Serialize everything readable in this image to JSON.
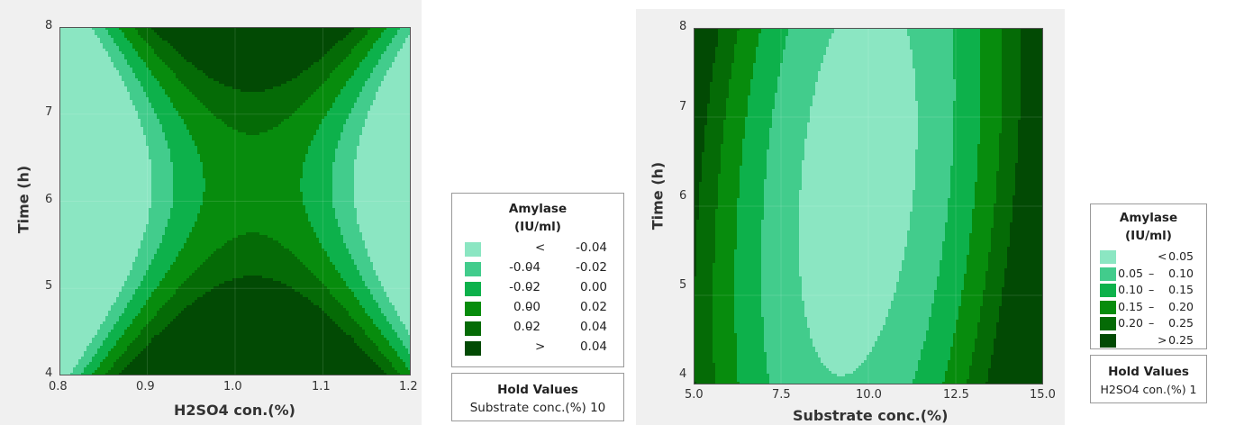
{
  "chart_data": [
    {
      "type": "contour",
      "xlabel": "H2SO4 con.(%)",
      "ylabel": "Time (h)",
      "xlim": [
        0.8,
        1.2
      ],
      "ylim": [
        4,
        8
      ],
      "x_ticks": [
        "0.8",
        "0.9",
        "1.0",
        "1.1",
        "1.2"
      ],
      "y_ticks": [
        "4",
        "5",
        "6",
        "7",
        "8"
      ],
      "legend": {
        "title": [
          "Amylase",
          "(IU/ml)"
        ],
        "bands": [
          {
            "lo": "",
            "sep": "<",
            "hi": "-0.04",
            "color": "#8be6c2"
          },
          {
            "lo": "-0.04",
            "sep": "–",
            "hi": "-0.02",
            "color": "#42cc8c"
          },
          {
            "lo": "-0.02",
            "sep": "–",
            "hi": "0.00",
            "color": "#0db14b"
          },
          {
            "lo": "0.00",
            "sep": "–",
            "hi": "0.02",
            "color": "#078c0d"
          },
          {
            "lo": "0.02",
            "sep": "–",
            "hi": "0.04",
            "color": "#056b06"
          },
          {
            "lo": "",
            "sep": ">",
            "hi": "0.04",
            "color": "#024a04"
          }
        ]
      },
      "hold": {
        "title": "Hold Values",
        "text": "Substrate conc.(%)  10"
      },
      "model": {
        "levels": [
          -0.04,
          -0.02,
          0.0,
          0.02,
          0.04
        ],
        "c": 0.012,
        "a": 0.44,
        "b": 0.025
      }
    },
    {
      "type": "contour",
      "xlabel": "Substrate conc.(%)",
      "ylabel": "Time (h)",
      "xlim": [
        5.0,
        15.0
      ],
      "ylim": [
        4,
        8
      ],
      "x_ticks": [
        "5.0",
        "7.5",
        "10.0",
        "12.5",
        "15.0"
      ],
      "y_ticks": [
        "4",
        "5",
        "6",
        "7",
        "8"
      ],
      "legend": {
        "title": [
          "Amylase",
          "(IU/ml)"
        ],
        "bands": [
          {
            "lo": "",
            "sep": "<",
            "hi": "0.05",
            "color": "#8be6c2"
          },
          {
            "lo": "0.05",
            "sep": "–",
            "hi": "0.10",
            "color": "#42cc8c"
          },
          {
            "lo": "0.10",
            "sep": "–",
            "hi": "0.15",
            "color": "#0db14b"
          },
          {
            "lo": "0.15",
            "sep": "–",
            "hi": "0.20",
            "color": "#078c0d"
          },
          {
            "lo": "0.20",
            "sep": "–",
            "hi": "0.25",
            "color": "#056b06"
          },
          {
            "lo": "",
            "sep": ">",
            "hi": "0.25",
            "color": "#024a04"
          }
        ]
      },
      "hold": {
        "title": "Hold Values",
        "text": "H2SO4 con.(%)  1"
      },
      "model": {
        "levels": [
          0.05,
          0.1,
          0.15,
          0.2,
          0.25
        ],
        "cx": 9.7,
        "cy": 6.3,
        "sx": 3.5,
        "sy": 2.6,
        "rot": 0.22
      }
    }
  ]
}
